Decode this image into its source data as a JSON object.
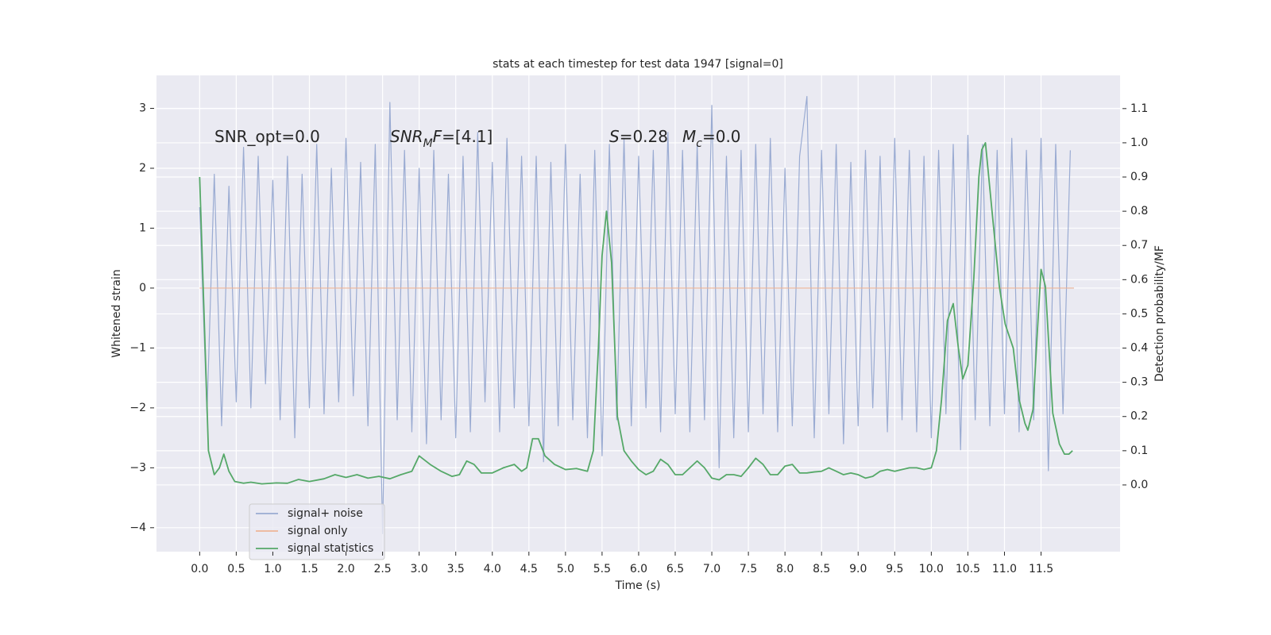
{
  "chart_data": {
    "type": "line",
    "title": "stats at each timestep for test data 1947 [signal=0]",
    "xlabel": "Time (s)",
    "ylabel": "Whitened strain",
    "y2label": "Detection probability/MF",
    "grid": true,
    "xlim": [
      -0.59,
      12.58
    ],
    "ylim": [
      -4.4,
      3.55
    ],
    "y2lim": [
      -0.195,
      1.197
    ],
    "xticks": [
      {
        "value": 0,
        "label": "0.0"
      },
      {
        "value": 0.5,
        "label": "0.5"
      },
      {
        "value": 1,
        "label": "1.0"
      },
      {
        "value": 1.5,
        "label": "1.5"
      },
      {
        "value": 2,
        "label": "2.0"
      },
      {
        "value": 2.5,
        "label": "2.5"
      },
      {
        "value": 3,
        "label": "3.0"
      },
      {
        "value": 3.5,
        "label": "3.5"
      },
      {
        "value": 4,
        "label": "4.0"
      },
      {
        "value": 4.5,
        "label": "4.5"
      },
      {
        "value": 5,
        "label": "5.0"
      },
      {
        "value": 5.5,
        "label": "5.5"
      },
      {
        "value": 6,
        "label": "6.0"
      },
      {
        "value": 6.5,
        "label": "6.5"
      },
      {
        "value": 7,
        "label": "7.0"
      },
      {
        "value": 7.5,
        "label": "7.5"
      },
      {
        "value": 8,
        "label": "8.0"
      },
      {
        "value": 8.5,
        "label": "8.5"
      },
      {
        "value": 9,
        "label": "9.0"
      },
      {
        "value": 9.5,
        "label": "9.5"
      },
      {
        "value": 10,
        "label": "10.0"
      },
      {
        "value": 10.5,
        "label": "10.5"
      },
      {
        "value": 11,
        "label": "11.0"
      },
      {
        "value": 11.5,
        "label": "11.5"
      }
    ],
    "yticks": [
      {
        "value": -4,
        "label": "−4"
      },
      {
        "value": -3,
        "label": "−3"
      },
      {
        "value": -2,
        "label": "−2"
      },
      {
        "value": -1,
        "label": "−1"
      },
      0,
      1,
      2,
      3
    ],
    "y2ticks": [
      {
        "value": 0,
        "label": "0.0"
      },
      {
        "value": 0.1,
        "label": "0.1"
      },
      {
        "value": 0.2,
        "label": "0.2"
      },
      {
        "value": 0.3,
        "label": "0.3"
      },
      {
        "value": 0.4,
        "label": "0.4"
      },
      {
        "value": 0.5,
        "label": "0.5"
      },
      {
        "value": 0.6,
        "label": "0.6"
      },
      {
        "value": 0.7,
        "label": "0.7"
      },
      {
        "value": 0.8,
        "label": "0.8"
      },
      {
        "value": 0.9,
        "label": "0.9"
      },
      {
        "value": 1,
        "label": "1.0"
      },
      {
        "value": 1.1,
        "label": "1.1"
      }
    ],
    "annotations": [
      [
        {
          "text": "SNR_opt=0.0"
        }
      ],
      [
        {
          "text": "SNR",
          "italic": true
        },
        {
          "text": "M",
          "italic": true,
          "sub": true
        },
        {
          "text": "F",
          "italic": true
        },
        {
          "text": "=[4.1]"
        }
      ],
      [
        {
          "text": "S",
          "italic": true
        },
        {
          "text": "=0.28"
        }
      ],
      [
        {
          "text": "M",
          "italic": true
        },
        {
          "text": "c",
          "italic": true,
          "sub": true
        },
        {
          "text": "=0.0"
        }
      ]
    ],
    "series": [
      {
        "name": "signal+ noise",
        "color": "#9aabd2",
        "axis": "y",
        "x": [
          0,
          0.1,
          0.2,
          0.3,
          0.4,
          0.5,
          0.6,
          0.7,
          0.8,
          0.9,
          1,
          1.1,
          1.2,
          1.3,
          1.4,
          1.5,
          1.6,
          1.7,
          1.8,
          1.9,
          2,
          2.1,
          2.2,
          2.3,
          2.4,
          2.5,
          2.6,
          2.7,
          2.8,
          2.9,
          3,
          3.1,
          3.2,
          3.3,
          3.4,
          3.5,
          3.6,
          3.7,
          3.8,
          3.9,
          4,
          4.1,
          4.2,
          4.3,
          4.4,
          4.5,
          4.6,
          4.7,
          4.8,
          4.9,
          5,
          5.1,
          5.2,
          5.3,
          5.4,
          5.5,
          5.6,
          5.7,
          5.8,
          5.9,
          6,
          6.1,
          6.2,
          6.3,
          6.4,
          6.5,
          6.6,
          6.7,
          6.8,
          6.9,
          7,
          7.1,
          7.2,
          7.3,
          7.4,
          7.5,
          7.6,
          7.7,
          7.8,
          7.9,
          8,
          8.1,
          8.2,
          8.3,
          8.4,
          8.5,
          8.6,
          8.7,
          8.8,
          8.9,
          9,
          9.1,
          9.2,
          9.3,
          9.4,
          9.5,
          9.6,
          9.7,
          9.8,
          9.9,
          10,
          10.1,
          10.2,
          10.3,
          10.4,
          10.5,
          10.6,
          10.7,
          10.8,
          10.9,
          11,
          11.1,
          11.2,
          11.3,
          11.4,
          11.5,
          11.6,
          11.7,
          11.8,
          11.9
        ],
        "values": [
          1.35,
          -2.1,
          1.9,
          -2.3,
          1.7,
          -1.9,
          2.35,
          -2.0,
          2.2,
          -1.6,
          1.8,
          -2.2,
          2.2,
          -2.5,
          1.9,
          -2.0,
          2.4,
          -2.1,
          2.0,
          -1.9,
          2.5,
          -1.8,
          2.1,
          -2.3,
          2.4,
          -4.1,
          3.1,
          -2.2,
          2.3,
          -2.4,
          2.0,
          -2.6,
          2.3,
          -2.2,
          1.9,
          -2.5,
          2.2,
          -2.4,
          2.6,
          -1.9,
          2.1,
          -2.4,
          2.5,
          -2.0,
          2.2,
          -2.3,
          2.2,
          -2.9,
          2.1,
          -2.3,
          2.4,
          -2.2,
          1.9,
          -2.5,
          2.3,
          -2.8,
          2.4,
          -2.2,
          2.5,
          -2.3,
          2.2,
          -2.0,
          2.3,
          -2.4,
          2.6,
          -2.1,
          2.3,
          -2.4,
          2.4,
          -2.2,
          3.05,
          -3.0,
          2.2,
          -2.5,
          2.3,
          -2.4,
          2.4,
          -2.1,
          2.5,
          -2.4,
          2.0,
          -2.3,
          2.2,
          3.2,
          -2.5,
          2.3,
          -2.1,
          2.4,
          -2.6,
          2.1,
          -2.3,
          2.3,
          -2.0,
          2.2,
          -2.4,
          2.5,
          -2.2,
          2.3,
          -2.4,
          2.2,
          -2.5,
          2.3,
          -2.1,
          2.4,
          -2.7,
          2.55,
          -2.2,
          2.4,
          -2.3,
          2.3,
          -2.1,
          2.5,
          -2.4,
          2.3,
          -2.2,
          2.5,
          -3.05,
          2.4,
          -2.1,
          2.3
        ]
      },
      {
        "name": "signal only",
        "color": "#eeb496",
        "axis": "y",
        "x": [
          0,
          11.95
        ],
        "values": [
          0,
          0
        ]
      },
      {
        "name": "signal statistics",
        "color": "#55a868",
        "axis": "y2",
        "x": [
          0,
          0.12,
          0.2,
          0.27,
          0.33,
          0.4,
          0.48,
          0.6,
          0.7,
          0.85,
          1.05,
          1.2,
          1.35,
          1.5,
          1.7,
          1.85,
          2.0,
          2.15,
          2.3,
          2.45,
          2.6,
          2.75,
          2.9,
          3.0,
          3.15,
          3.3,
          3.45,
          3.55,
          3.65,
          3.75,
          3.85,
          4.0,
          4.15,
          4.3,
          4.4,
          4.47,
          4.55,
          4.63,
          4.72,
          4.85,
          5.0,
          5.15,
          5.3,
          5.38,
          5.45,
          5.5,
          5.56,
          5.63,
          5.71,
          5.8,
          5.9,
          6.0,
          6.1,
          6.2,
          6.3,
          6.4,
          6.5,
          6.6,
          6.7,
          6.8,
          6.9,
          7.0,
          7.1,
          7.2,
          7.3,
          7.4,
          7.5,
          7.6,
          7.7,
          7.8,
          7.9,
          8.0,
          8.1,
          8.2,
          8.3,
          8.4,
          8.5,
          8.6,
          8.7,
          8.8,
          8.9,
          9.0,
          9.1,
          9.2,
          9.3,
          9.4,
          9.5,
          9.6,
          9.7,
          9.8,
          9.9,
          10.0,
          10.07,
          10.14,
          10.22,
          10.3,
          10.37,
          10.43,
          10.5,
          10.58,
          10.65,
          10.69,
          10.74,
          10.83,
          10.93,
          11.01,
          11.12,
          11.2,
          11.28,
          11.32,
          11.39,
          11.45,
          11.5,
          11.56,
          11.66,
          11.75,
          11.82,
          11.88,
          11.93
        ],
        "values": [
          0.9,
          0.1,
          0.03,
          0.05,
          0.09,
          0.04,
          0.01,
          0.005,
          0.008,
          0.003,
          0.006,
          0.005,
          0.016,
          0.01,
          0.018,
          0.03,
          0.022,
          0.03,
          0.02,
          0.025,
          0.018,
          0.03,
          0.04,
          0.085,
          0.06,
          0.04,
          0.025,
          0.03,
          0.07,
          0.06,
          0.035,
          0.035,
          0.05,
          0.06,
          0.04,
          0.05,
          0.135,
          0.135,
          0.085,
          0.06,
          0.045,
          0.048,
          0.04,
          0.1,
          0.4,
          0.67,
          0.8,
          0.65,
          0.2,
          0.1,
          0.07,
          0.045,
          0.03,
          0.04,
          0.075,
          0.06,
          0.03,
          0.03,
          0.05,
          0.07,
          0.05,
          0.02,
          0.015,
          0.03,
          0.03,
          0.025,
          0.05,
          0.078,
          0.06,
          0.03,
          0.03,
          0.055,
          0.06,
          0.035,
          0.035,
          0.038,
          0.04,
          0.05,
          0.04,
          0.03,
          0.035,
          0.03,
          0.02,
          0.025,
          0.04,
          0.045,
          0.04,
          0.045,
          0.05,
          0.05,
          0.045,
          0.05,
          0.1,
          0.25,
          0.48,
          0.53,
          0.4,
          0.31,
          0.35,
          0.6,
          0.9,
          0.98,
          1.0,
          0.8,
          0.58,
          0.47,
          0.4,
          0.25,
          0.18,
          0.16,
          0.22,
          0.45,
          0.63,
          0.58,
          0.21,
          0.12,
          0.09,
          0.09,
          0.1
        ]
      }
    ]
  }
}
